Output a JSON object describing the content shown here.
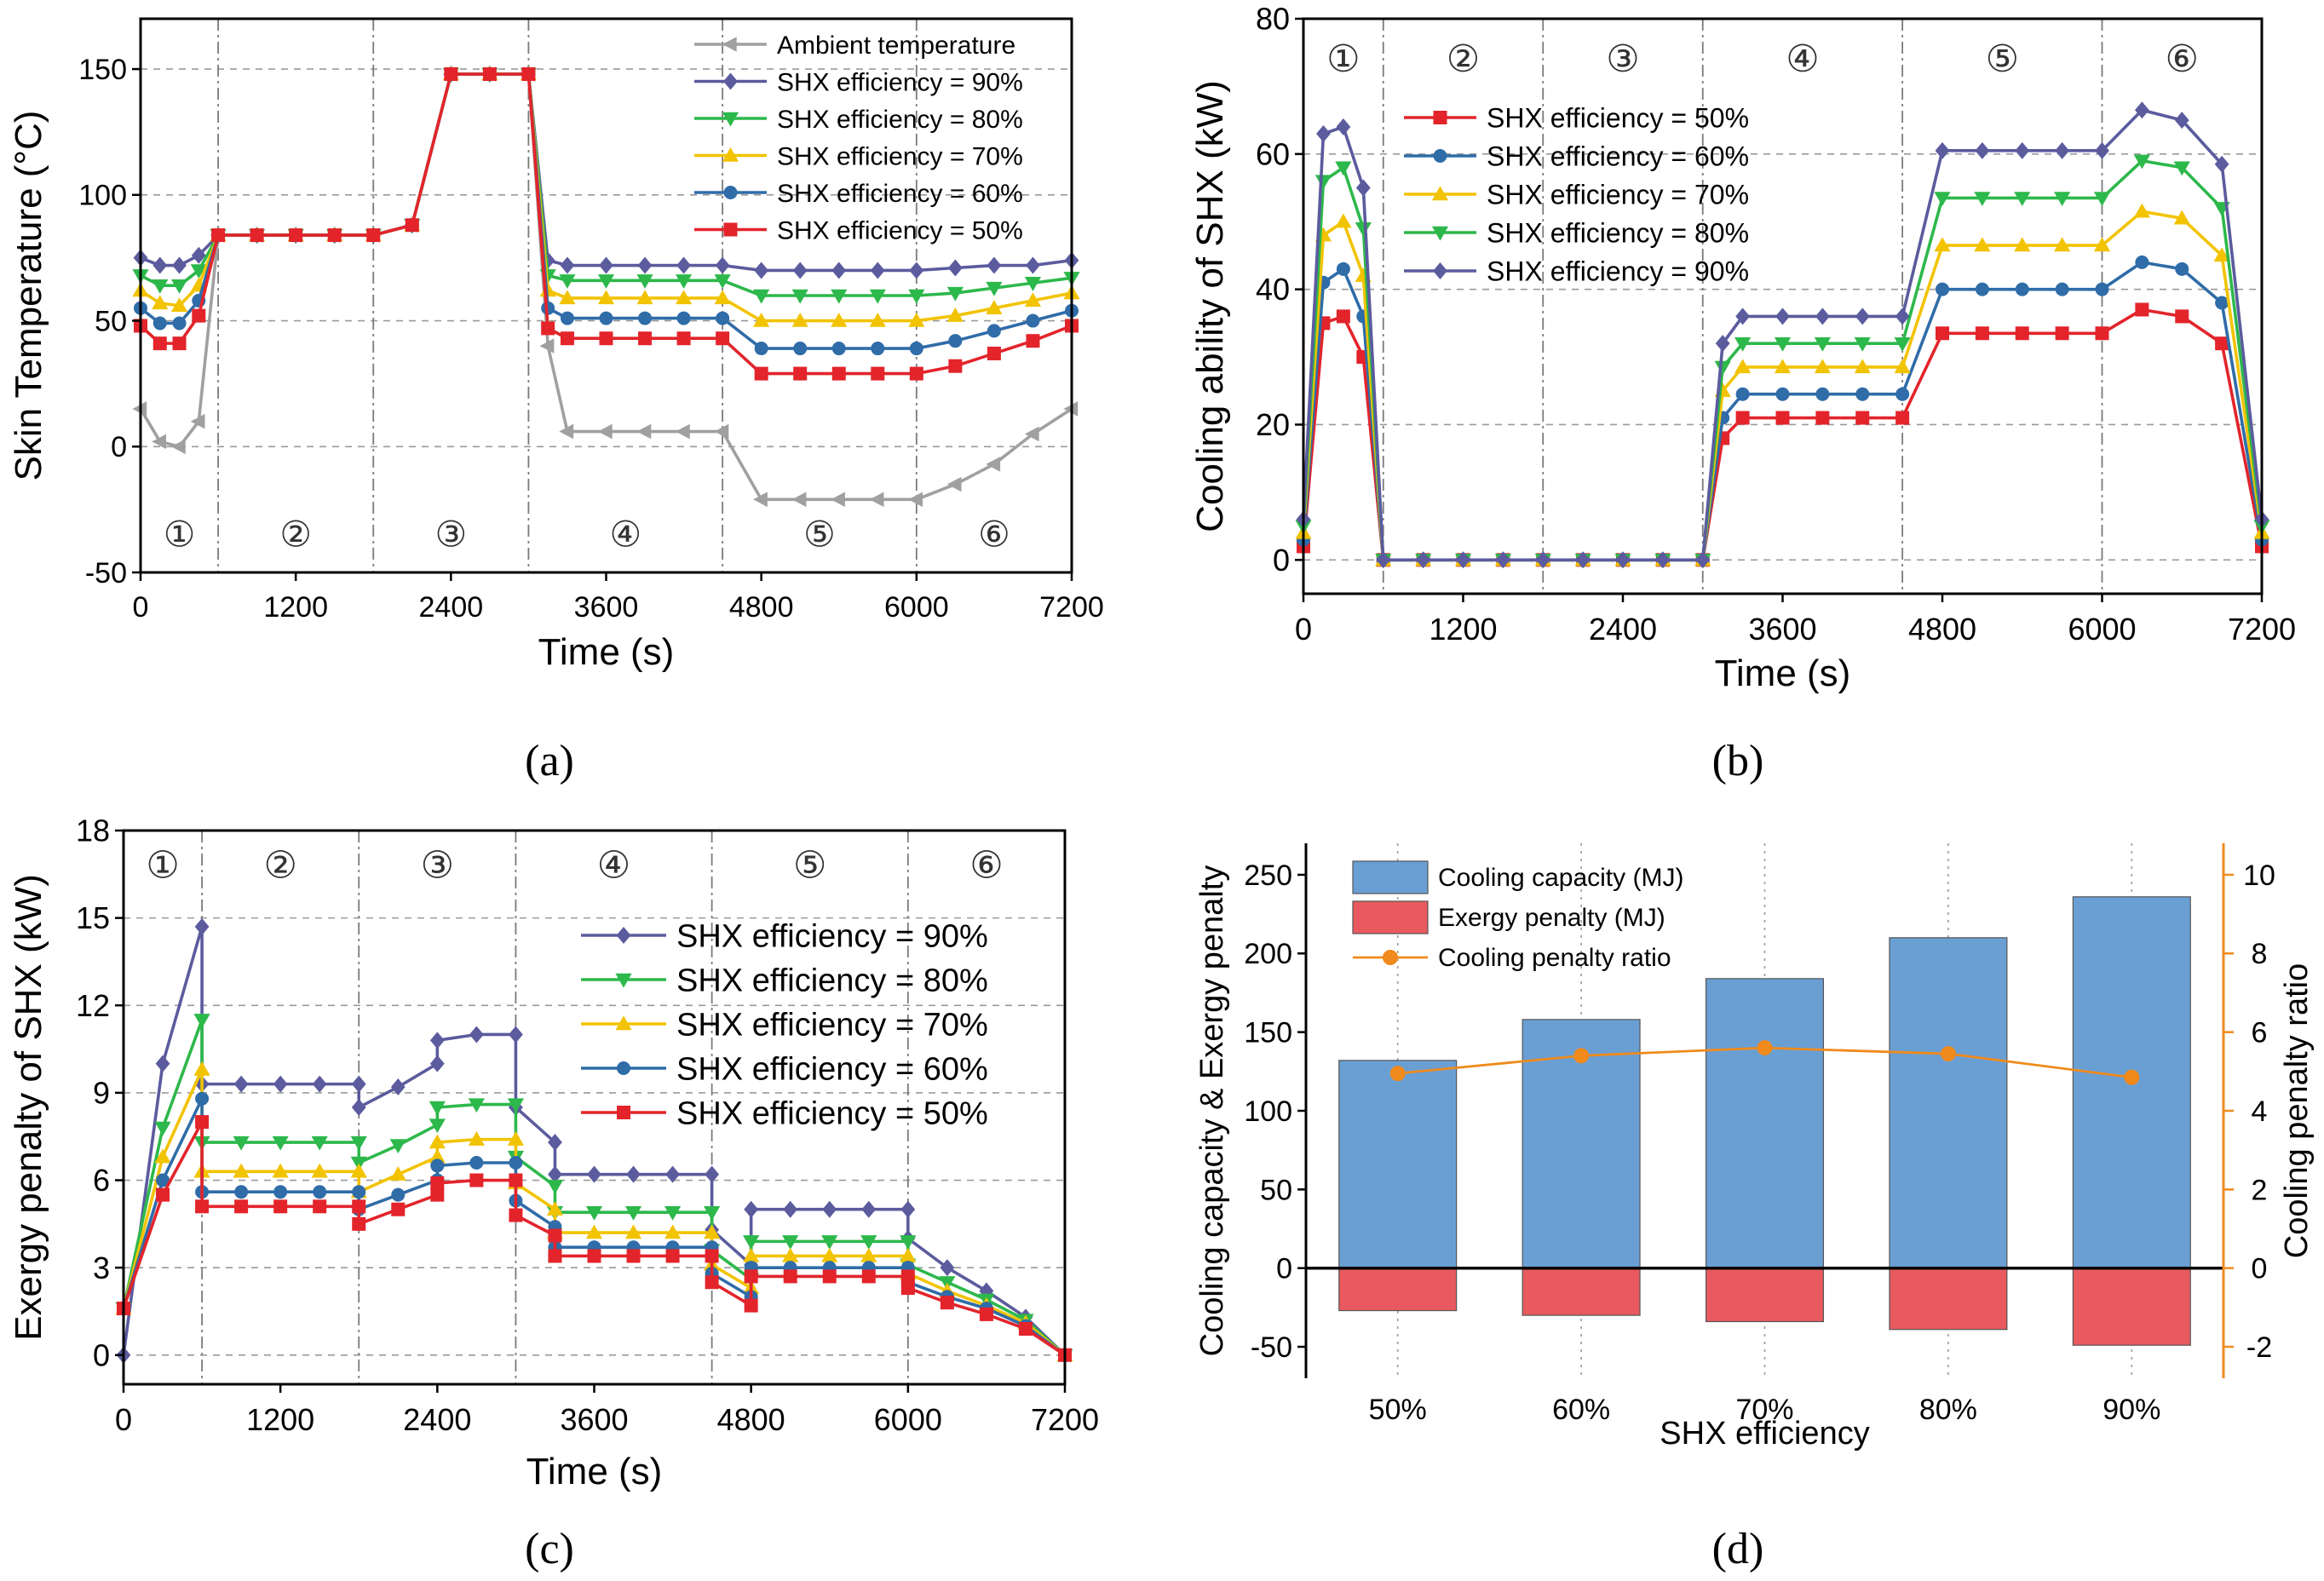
{
  "figure": {
    "panel_labels": [
      "(a)",
      "(b)",
      "(c)",
      "(d)"
    ]
  },
  "chart_data": [
    {
      "panel": "a",
      "type": "line",
      "title": "",
      "xlabel": "Time (s)",
      "ylabel": "Skin Temperature (°C)",
      "xlim": [
        0,
        7200
      ],
      "ylim": [
        -50,
        170
      ],
      "xticks": [
        0,
        1200,
        2400,
        3600,
        4800,
        6000,
        7200
      ],
      "yticks": [
        -50,
        0,
        50,
        100,
        150
      ],
      "phase_bounds": [
        600,
        1800,
        3000,
        4500,
        6000
      ],
      "phase_labels": [
        "①",
        "②",
        "③",
        "④",
        "⑤",
        "⑥"
      ],
      "phase_label_y": -35,
      "legend": "top-right",
      "x": [
        0,
        150,
        300,
        450,
        600,
        900,
        1200,
        1500,
        1800,
        2100,
        2400,
        2700,
        3000,
        3150,
        3300,
        3600,
        3900,
        4200,
        4500,
        4800,
        5100,
        5400,
        5700,
        6000,
        6300,
        6600,
        6900,
        7200
      ],
      "series": [
        {
          "name": "Ambient temperature",
          "color": "#a0a0a0",
          "marker": "triangle-left",
          "values": [
            15,
            2,
            0,
            10,
            84,
            84,
            84,
            84,
            84,
            88,
            148,
            148,
            148,
            40,
            6,
            6,
            6,
            6,
            6,
            -21,
            -21,
            -21,
            -21,
            -21,
            -15,
            -7,
            5,
            15
          ]
        },
        {
          "name": "SHX efficiency = 90%",
          "color": "#5b5b9e",
          "marker": "diamond",
          "values": [
            75,
            72,
            72,
            76,
            84,
            84,
            84,
            84,
            84,
            88,
            148,
            148,
            148,
            74,
            72,
            72,
            72,
            72,
            72,
            70,
            70,
            70,
            70,
            70,
            71,
            72,
            72,
            74
          ]
        },
        {
          "name": "SHX efficiency = 80%",
          "color": "#2db84b",
          "marker": "triangle-down",
          "values": [
            68,
            64,
            64,
            70,
            84,
            84,
            84,
            84,
            84,
            88,
            148,
            148,
            148,
            68,
            66,
            66,
            66,
            66,
            66,
            60,
            60,
            60,
            60,
            60,
            61,
            63,
            65,
            67
          ]
        },
        {
          "name": "SHX efficiency = 70%",
          "color": "#f2c300",
          "marker": "triangle-up",
          "values": [
            62,
            57,
            56,
            64,
            84,
            84,
            84,
            84,
            84,
            88,
            148,
            148,
            148,
            62,
            59,
            59,
            59,
            59,
            59,
            50,
            50,
            50,
            50,
            50,
            52,
            55,
            58,
            61
          ]
        },
        {
          "name": "SHX efficiency = 60%",
          "color": "#2f6ca8",
          "marker": "circle",
          "values": [
            55,
            49,
            49,
            58,
            84,
            84,
            84,
            84,
            84,
            88,
            148,
            148,
            148,
            55,
            51,
            51,
            51,
            51,
            51,
            39,
            39,
            39,
            39,
            39,
            42,
            46,
            50,
            54
          ]
        },
        {
          "name": "SHX efficiency = 50%",
          "color": "#e3242b",
          "marker": "square",
          "values": [
            48,
            41,
            41,
            52,
            84,
            84,
            84,
            84,
            84,
            88,
            148,
            148,
            148,
            47,
            43,
            43,
            43,
            43,
            43,
            29,
            29,
            29,
            29,
            29,
            32,
            37,
            42,
            48
          ]
        }
      ]
    },
    {
      "panel": "b",
      "type": "line",
      "title": "",
      "xlabel": "Time (s)",
      "ylabel": "Cooling ability of SHX (kW)",
      "xlim": [
        0,
        7200
      ],
      "ylim": [
        -5,
        80
      ],
      "xticks": [
        0,
        1200,
        2400,
        3600,
        4800,
        6000,
        7200
      ],
      "yticks": [
        0,
        20,
        40,
        60,
        80
      ],
      "phase_bounds": [
        600,
        1800,
        3000,
        4500,
        6000
      ],
      "phase_labels": [
        "①",
        "②",
        "③",
        "④",
        "⑤",
        "⑥"
      ],
      "phase_label_y": 74,
      "legend": "top-left",
      "x": [
        0,
        150,
        300,
        450,
        600,
        900,
        1200,
        1500,
        1800,
        2100,
        2400,
        2700,
        3000,
        3150,
        3300,
        3600,
        3900,
        4200,
        4500,
        4800,
        5100,
        5400,
        5700,
        6000,
        6300,
        6600,
        6900,
        7200
      ],
      "series": [
        {
          "name": "SHX efficiency = 50%",
          "color": "#e3242b",
          "marker": "square",
          "values": [
            2,
            35,
            36,
            30,
            0,
            0,
            0,
            0,
            0,
            0,
            0,
            0,
            0,
            18,
            21,
            21,
            21,
            21,
            21,
            33.5,
            33.5,
            33.5,
            33.5,
            33.5,
            37,
            36,
            32,
            2
          ]
        },
        {
          "name": "SHX efficiency = 60%",
          "color": "#2f6ca8",
          "marker": "circle",
          "values": [
            3,
            41,
            43,
            36,
            0,
            0,
            0,
            0,
            0,
            0,
            0,
            0,
            0,
            21,
            24.5,
            24.5,
            24.5,
            24.5,
            24.5,
            40,
            40,
            40,
            40,
            40,
            44,
            43,
            38,
            3
          ]
        },
        {
          "name": "SHX efficiency = 70%",
          "color": "#f2c300",
          "marker": "triangle-up",
          "values": [
            4,
            48,
            50,
            42,
            0,
            0,
            0,
            0,
            0,
            0,
            0,
            0,
            0,
            25,
            28.5,
            28.5,
            28.5,
            28.5,
            28.5,
            46.5,
            46.5,
            46.5,
            46.5,
            46.5,
            51.5,
            50.5,
            45,
            4
          ]
        },
        {
          "name": "SHX efficiency = 80%",
          "color": "#2db84b",
          "marker": "triangle-down",
          "values": [
            5,
            56,
            58,
            49,
            0,
            0,
            0,
            0,
            0,
            0,
            0,
            0,
            0,
            28.5,
            32,
            32,
            32,
            32,
            32,
            53.5,
            53.5,
            53.5,
            53.5,
            53.5,
            59,
            58,
            52,
            5
          ]
        },
        {
          "name": "SHX efficiency = 90%",
          "color": "#5b5b9e",
          "marker": "diamond",
          "values": [
            6,
            63,
            64,
            55,
            0,
            0,
            0,
            0,
            0,
            0,
            0,
            0,
            0,
            32,
            36,
            36,
            36,
            36,
            36,
            60.5,
            60.5,
            60.5,
            60.5,
            60.5,
            66.5,
            65,
            58.5,
            6
          ]
        }
      ]
    },
    {
      "panel": "c",
      "type": "line",
      "title": "",
      "xlabel": "Time (s)",
      "ylabel": "Exergy penalty of SHX (kW)",
      "xlim": [
        0,
        7200
      ],
      "ylim": [
        -1,
        18
      ],
      "xticks": [
        0,
        1200,
        2400,
        3600,
        4800,
        6000,
        7200
      ],
      "yticks": [
        0,
        3,
        6,
        9,
        12,
        15,
        18
      ],
      "phase_bounds": [
        600,
        1800,
        3000,
        4500,
        6000
      ],
      "phase_labels": [
        "①",
        "②",
        "③",
        "④",
        "⑤",
        "⑥"
      ],
      "phase_label_y": 16.8,
      "legend": "center-right",
      "x": [
        0,
        300,
        600,
        600,
        900,
        1200,
        1500,
        1800,
        1800,
        2100,
        2400,
        2400,
        2700,
        3000,
        3000,
        3300,
        3300,
        3600,
        3900,
        4200,
        4500,
        4500,
        4800,
        4800,
        5100,
        5400,
        5700,
        6000,
        6000,
        6300,
        6600,
        6900,
        7200
      ],
      "series": [
        {
          "name": "SHX efficiency = 90%",
          "color": "#5b5b9e",
          "marker": "diamond",
          "values": [
            0,
            10,
            14.7,
            9.3,
            9.3,
            9.3,
            9.3,
            9.3,
            8.5,
            9.2,
            10,
            10.8,
            11,
            11,
            8.5,
            7.3,
            6.2,
            6.2,
            6.2,
            6.2,
            6.2,
            4.3,
            3.1,
            5,
            5,
            5,
            5,
            5,
            4,
            3,
            2.2,
            1.3,
            0
          ]
        },
        {
          "name": "SHX efficiency = 80%",
          "color": "#2db84b",
          "marker": "triangle-down",
          "values": [
            1.6,
            7.8,
            11.5,
            7.3,
            7.3,
            7.3,
            7.3,
            7.3,
            6.6,
            7.2,
            7.9,
            8.5,
            8.6,
            8.6,
            6.8,
            5.8,
            4.9,
            4.9,
            4.9,
            4.9,
            4.9,
            3.6,
            2.6,
            3.9,
            3.9,
            3.9,
            3.9,
            3.9,
            3.1,
            2.5,
            1.9,
            1.2,
            0
          ]
        },
        {
          "name": "SHX efficiency = 70%",
          "color": "#f2c300",
          "marker": "triangle-up",
          "values": [
            1.6,
            6.8,
            9.8,
            6.3,
            6.3,
            6.3,
            6.3,
            6.3,
            5.6,
            6.2,
            6.8,
            7.3,
            7.4,
            7.4,
            5.9,
            5,
            4.2,
            4.2,
            4.2,
            4.2,
            4.2,
            3.1,
            2.3,
            3.4,
            3.4,
            3.4,
            3.4,
            3.4,
            2.8,
            2.2,
            1.7,
            1.1,
            0
          ]
        },
        {
          "name": "SHX efficiency = 60%",
          "color": "#2f6ca8",
          "marker": "circle",
          "values": [
            1.6,
            6,
            8.8,
            5.6,
            5.6,
            5.6,
            5.6,
            5.6,
            5,
            5.5,
            6,
            6.5,
            6.6,
            6.6,
            5.3,
            4.4,
            3.7,
            3.7,
            3.7,
            3.7,
            3.7,
            2.8,
            2,
            3,
            3,
            3,
            3,
            3,
            2.5,
            2,
            1.6,
            1,
            0
          ]
        },
        {
          "name": "SHX efficiency = 50%",
          "color": "#e3242b",
          "marker": "square",
          "values": [
            1.6,
            5.5,
            8,
            5.1,
            5.1,
            5.1,
            5.1,
            5.1,
            4.5,
            5,
            5.5,
            5.9,
            6,
            6,
            4.8,
            4.1,
            3.4,
            3.4,
            3.4,
            3.4,
            3.4,
            2.5,
            1.7,
            2.7,
            2.7,
            2.7,
            2.7,
            2.7,
            2.3,
            1.8,
            1.4,
            0.9,
            0
          ]
        }
      ]
    },
    {
      "panel": "d",
      "type": "bar",
      "title": "",
      "xlabel": "SHX efficiency",
      "ylabel": "Cooling capacity & Exergy penalty",
      "y2label": "Cooling penalty ratio",
      "categories": [
        "50%",
        "60%",
        "70%",
        "80%",
        "90%"
      ],
      "ylim": [
        -70,
        270
      ],
      "yticks": [
        -50,
        0,
        50,
        100,
        150,
        200,
        250
      ],
      "y2lim": [
        -2.8,
        10.8
      ],
      "y2ticks": [
        -2,
        0,
        2,
        4,
        6,
        8,
        10
      ],
      "legend": "top-left",
      "series": [
        {
          "name": "Cooling capacity (MJ)",
          "color": "#6a9fd4",
          "values": [
            132,
            158,
            184,
            210,
            236
          ]
        },
        {
          "name": "Exergy penalty (MJ)",
          "color": "#e85a5f",
          "values": [
            -27,
            -30,
            -34,
            -39,
            -49
          ]
        },
        {
          "name": "Cooling penalty ratio",
          "color": "#f08a1c",
          "axis": "right",
          "values": [
            4.95,
            5.4,
            5.6,
            5.45,
            4.85
          ]
        }
      ]
    }
  ]
}
